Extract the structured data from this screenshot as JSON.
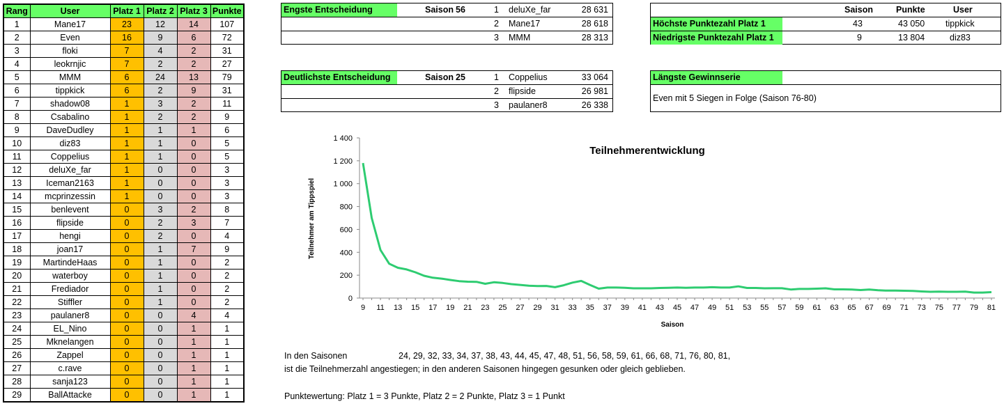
{
  "table": {
    "headers": [
      "Rang",
      "User",
      "Platz 1",
      "Platz 2",
      "Platz 3",
      "Punkte"
    ],
    "rows": [
      [
        "1",
        "Mane17",
        "23",
        "12",
        "14",
        "107"
      ],
      [
        "2",
        "Even",
        "16",
        "9",
        "6",
        "72"
      ],
      [
        "3",
        "floki",
        "7",
        "4",
        "2",
        "31"
      ],
      [
        "4",
        "leokrnjic",
        "7",
        "2",
        "2",
        "27"
      ],
      [
        "5",
        "MMM",
        "6",
        "24",
        "13",
        "79"
      ],
      [
        "6",
        "tippkick",
        "6",
        "2",
        "9",
        "31"
      ],
      [
        "7",
        "shadow08",
        "1",
        "3",
        "2",
        "11"
      ],
      [
        "8",
        "Csabalino",
        "1",
        "2",
        "2",
        "9"
      ],
      [
        "9",
        "DaveDudley",
        "1",
        "1",
        "1",
        "6"
      ],
      [
        "10",
        "diz83",
        "1",
        "1",
        "0",
        "5"
      ],
      [
        "11",
        "Coppelius",
        "1",
        "1",
        "0",
        "5"
      ],
      [
        "12",
        "deluXe_far",
        "1",
        "0",
        "0",
        "3"
      ],
      [
        "13",
        "Iceman2163",
        "1",
        "0",
        "0",
        "3"
      ],
      [
        "14",
        "mcprinzessin",
        "1",
        "0",
        "0",
        "3"
      ],
      [
        "15",
        "benlevent",
        "0",
        "3",
        "2",
        "8"
      ],
      [
        "16",
        "flipside",
        "0",
        "2",
        "3",
        "7"
      ],
      [
        "17",
        "hengi",
        "0",
        "2",
        "0",
        "4"
      ],
      [
        "18",
        "joan17",
        "0",
        "1",
        "7",
        "9"
      ],
      [
        "19",
        "MartindeHaas",
        "0",
        "1",
        "0",
        "2"
      ],
      [
        "20",
        "waterboy",
        "0",
        "1",
        "0",
        "2"
      ],
      [
        "21",
        "Frediador",
        "0",
        "1",
        "0",
        "2"
      ],
      [
        "22",
        "Stiffler",
        "0",
        "1",
        "0",
        "2"
      ],
      [
        "23",
        "paulaner8",
        "0",
        "0",
        "4",
        "4"
      ],
      [
        "24",
        "EL_Nino",
        "0",
        "0",
        "1",
        "1"
      ],
      [
        "25",
        "Mknelangen",
        "0",
        "0",
        "1",
        "1"
      ],
      [
        "26",
        "Zappel",
        "0",
        "0",
        "1",
        "1"
      ],
      [
        "27",
        "c.rave",
        "0",
        "0",
        "1",
        "1"
      ],
      [
        "28",
        "sanja123",
        "0",
        "0",
        "1",
        "1"
      ],
      [
        "29",
        "BallAttacke",
        "0",
        "0",
        "1",
        "1"
      ]
    ]
  },
  "engste": {
    "title": "Engste Entscheidung",
    "saison_label": "Saison",
    "saison": "56",
    "rows": [
      {
        "pos": "1",
        "user": "deluXe_far",
        "punkte": "28 631"
      },
      {
        "pos": "2",
        "user": "Mane17",
        "punkte": "28 618"
      },
      {
        "pos": "3",
        "user": "MMM",
        "punkte": "28 313"
      }
    ]
  },
  "deutlichste": {
    "title": "Deutlichste Entscheidung",
    "saison_label": "Saison",
    "saison": "25",
    "rows": [
      {
        "pos": "1",
        "user": "Coppelius",
        "punkte": "33 064"
      },
      {
        "pos": "2",
        "user": "flipside",
        "punkte": "26 981"
      },
      {
        "pos": "3",
        "user": "paulaner8",
        "punkte": "26 338"
      }
    ]
  },
  "records": {
    "headers": {
      "saison": "Saison",
      "punkte": "Punkte",
      "user": "User"
    },
    "rows": [
      {
        "label": "Höchste Punktezahl Platz 1",
        "saison": "43",
        "punkte": "43 050",
        "user": "tippkick"
      },
      {
        "label": "Niedrigste Punktezahl Platz 1",
        "saison": "9",
        "punkte": "13 804",
        "user": "diz83"
      }
    ]
  },
  "serie": {
    "title": "Längste Gewinnserie",
    "text": "Even mit 5 Siegen in Folge (Saison 76-80)"
  },
  "notes": {
    "line1_label": "In den Saisonen",
    "line1_values": "24, 29, 32, 33, 34, 37, 38, 43, 44, 45, 47, 48, 51, 56, 58, 59, 61, 66, 68, 71, 76, 80, 81,",
    "line2": "ist die Teilnehmerzahl angestiegen; in den anderen Saisonen hingegen gesunken oder gleich geblieben.",
    "line3": "Punktewertung: Platz 1 = 3 Punkte, Platz 2 = 2 Punkte, Platz 3 = 1 Punkt"
  },
  "colors": {
    "header_green": "#66ff66",
    "platz1": "#ffc000",
    "platz2": "#d9d9d9",
    "platz3": "#e6b8b7",
    "line": "#2ecc71"
  },
  "chart_data": {
    "type": "line",
    "title": "Teilnehmerentwicklung",
    "xlabel": "Saison",
    "ylabel": "Teilnehmer am Tippspiel",
    "ylim": [
      0,
      1400
    ],
    "yticks": [
      "0",
      "200",
      "400",
      "600",
      "800",
      "1 000",
      "1 200",
      "1 400"
    ],
    "ytick_values": [
      0,
      200,
      400,
      600,
      800,
      1000,
      1200,
      1400
    ],
    "xticks": [
      "9",
      "11",
      "13",
      "15",
      "17",
      "19",
      "21",
      "23",
      "25",
      "27",
      "29",
      "31",
      "33",
      "35",
      "37",
      "39",
      "41",
      "43",
      "45",
      "47",
      "49",
      "51",
      "53",
      "55",
      "57",
      "59",
      "61",
      "63",
      "65",
      "67",
      "69",
      "71",
      "73",
      "75",
      "77",
      "79",
      "81"
    ],
    "grid": false,
    "legend": "none",
    "x": [
      9,
      10,
      11,
      12,
      13,
      14,
      15,
      16,
      17,
      18,
      19,
      20,
      21,
      22,
      23,
      24,
      25,
      26,
      27,
      28,
      29,
      30,
      31,
      32,
      33,
      34,
      35,
      36,
      37,
      38,
      39,
      40,
      41,
      42,
      43,
      44,
      45,
      46,
      47,
      48,
      49,
      50,
      51,
      52,
      53,
      54,
      55,
      56,
      57,
      58,
      59,
      60,
      61,
      62,
      63,
      64,
      65,
      66,
      67,
      68,
      69,
      70,
      71,
      72,
      73,
      74,
      75,
      76,
      77,
      78,
      79,
      80,
      81
    ],
    "values": [
      1180,
      700,
      420,
      300,
      265,
      250,
      225,
      195,
      178,
      170,
      158,
      148,
      143,
      142,
      125,
      138,
      132,
      122,
      115,
      108,
      105,
      106,
      95,
      112,
      135,
      150,
      115,
      82,
      92,
      92,
      90,
      85,
      85,
      85,
      88,
      90,
      92,
      90,
      92,
      92,
      95,
      92,
      92,
      102,
      88,
      88,
      85,
      86,
      86,
      75,
      80,
      80,
      82,
      85,
      76,
      76,
      75,
      70,
      74,
      68,
      65,
      66,
      64,
      62,
      58,
      55,
      56,
      55,
      55,
      56,
      48,
      48,
      52
    ]
  }
}
